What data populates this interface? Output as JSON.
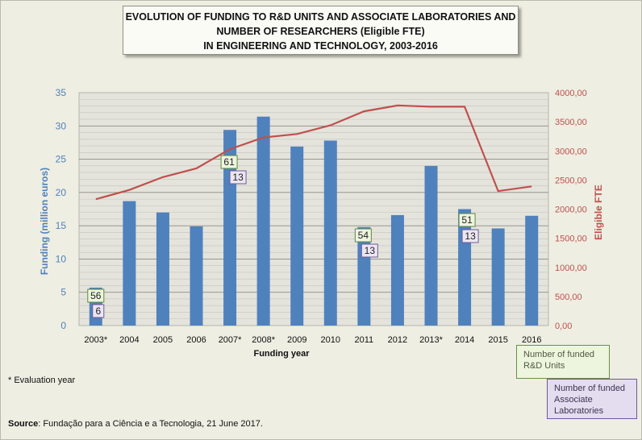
{
  "title_lines": [
    "EVOLUTION OF FUNDING TO R&D UNITS AND ASSOCIATE LABORATORIES AND",
    "NUMBER OF RESEARCHERS (Eligible FTE)",
    "IN ENGINEERING AND TECHNOLOGY, 2003-2016"
  ],
  "notes": {
    "evaluation_year": "* Evaluation year",
    "source_label": "Source",
    "source_text": ": Fundação para a Ciência e a Tecnologia, 21 June 2017."
  },
  "legend": {
    "rd_units": "Number of funded R&D Units",
    "associate_labs": "Number of funded Associate Laboratories"
  },
  "colors": {
    "bar": "#4f81bd",
    "line": "#c0504d",
    "left_axis_text": "#4f81bd",
    "right_axis_text": "#c0504d",
    "rd_badge_border": "#5f8a3a",
    "rd_badge_fill": "#eef5df",
    "lab_badge_border": "#6f5a98",
    "lab_badge_fill": "#ece6f3"
  },
  "chart_data": {
    "type": "bar",
    "categories": [
      "2003*",
      "2004",
      "2005",
      "2006",
      "2007*",
      "2008*",
      "2009",
      "2010",
      "2011",
      "2012",
      "2013*",
      "2014",
      "2015",
      "2016"
    ],
    "series": [
      {
        "name": "Funding (million euros)",
        "type": "bar",
        "axis": "left",
        "values": [
          5.7,
          18.7,
          17.0,
          14.9,
          29.4,
          31.4,
          26.9,
          27.8,
          14.8,
          16.6,
          24.0,
          17.5,
          14.6,
          16.5
        ]
      },
      {
        "name": "Eligible FTE",
        "type": "line",
        "axis": "right",
        "values": [
          2170,
          2330,
          2550,
          2700,
          3030,
          3230,
          3290,
          3440,
          3680,
          3780,
          3760,
          3760,
          2310,
          2390
        ]
      }
    ],
    "rd_units_labels": [
      {
        "category": "2003*",
        "value": 56
      },
      {
        "category": "2007*",
        "value": 61
      },
      {
        "category": "2011",
        "value": 54
      },
      {
        "category": "2014",
        "value": 51
      }
    ],
    "associate_lab_labels": [
      {
        "category": "2003*",
        "value": 6
      },
      {
        "category": "2007*",
        "value": 13
      },
      {
        "category": "2011",
        "value": 13
      },
      {
        "category": "2014",
        "value": 13
      }
    ],
    "xlabel": "Funding year",
    "ylabel": "Funding (million euros)",
    "y2label": "Eligible FTE",
    "ylim": [
      0,
      35
    ],
    "y_ticks": [
      "0",
      "5",
      "10",
      "15",
      "20",
      "25",
      "30",
      "35"
    ],
    "y2lim": [
      0,
      4000
    ],
    "y2_ticks": [
      "0,00",
      "500,00",
      "1000,00",
      "1500,00",
      "2000,00",
      "2500,00",
      "3000,00",
      "3500,00",
      "4000,00"
    ],
    "grid": true
  }
}
